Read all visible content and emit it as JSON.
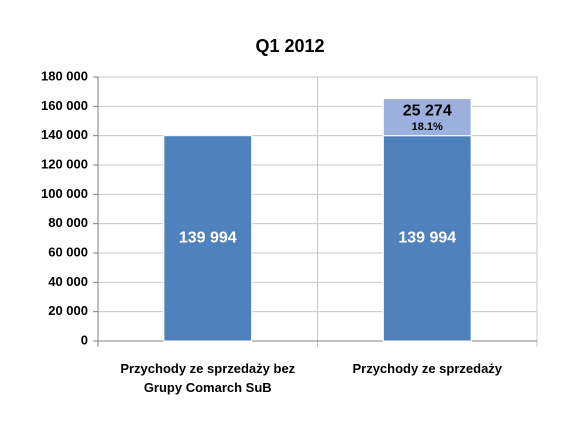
{
  "chart_data": {
    "type": "bar",
    "stacked": true,
    "title": "Q1 2012",
    "categories": [
      "Przychody ze sprzedaży bez Grupy Comarch SuB",
      "Przychody ze sprzedaży"
    ],
    "series": [
      {
        "color": "#4f81bd",
        "values": [
          139994,
          139994
        ],
        "value_labels": [
          "139 994",
          "139 994"
        ],
        "label_color": "#ffffff"
      },
      {
        "color": "#9bb0dc",
        "values": [
          null,
          25274
        ],
        "value_labels": [
          null,
          "25 274"
        ],
        "percent_labels": [
          null,
          "18.1%"
        ],
        "label_color": "#000000"
      }
    ],
    "ylim": [
      0,
      180000
    ],
    "yticks": [
      0,
      {
        "value": 20000,
        "label": "20 000"
      },
      {
        "value": 40000,
        "label": "40 000"
      },
      {
        "value": 60000,
        "label": "60 000"
      },
      {
        "value": 80000,
        "label": "80 000"
      },
      {
        "value": 100000,
        "label": "100 000"
      },
      {
        "value": 120000,
        "label": "120 000"
      },
      {
        "value": 140000,
        "label": "140 000"
      },
      {
        "value": 160000,
        "label": "160 000"
      },
      {
        "value": 180000,
        "label": "180 000"
      }
    ],
    "grid": true
  }
}
